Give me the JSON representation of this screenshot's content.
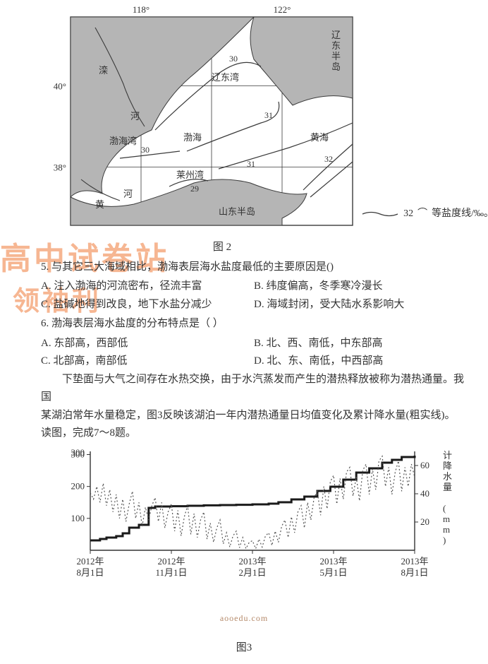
{
  "map": {
    "caption": "图 2",
    "lon_ticks": [
      "118°",
      "122°"
    ],
    "lat_ticks": [
      "40°",
      "38°"
    ],
    "labels": {
      "liaodong_peninsula": "辽东半岛",
      "liaodong_bay": "辽东湾",
      "bohai_bay": "渤海湾",
      "laizhou_bay": "莱州湾",
      "bohai": "渤海",
      "huanghai": "黄海",
      "shandong_peninsula": "山东半岛",
      "luan_river": "滦",
      "he_river": "河",
      "huang_river": "黄"
    },
    "isolines": [
      "30",
      "30",
      "31",
      "31",
      "32",
      "29"
    ],
    "legend_value": "32",
    "legend_text": "等盐度线/‰。",
    "land_fill": "#b5b5b5",
    "sea_fill": "#ffffff",
    "line_color": "#3a3a3a",
    "line_width": 1.2,
    "text_color": "#333333",
    "fontsize_label": 13
  },
  "watermark": {
    "line1": "高中试卷站",
    "line2": "领袖利",
    "color": "#f07c3a"
  },
  "q5": {
    "stem": "5. 与其它三大海域相比，渤海表层海水盐度最低的主要原因是()",
    "options": {
      "A": "A. 注入渤海的河流密布，径流丰富",
      "B": "B. 纬度偏高，冬季寒冷漫长",
      "C": "C. 盐碱地得到改良，地下水盐分减少",
      "D": "D. 海域封闭，受大陆水系影响大"
    }
  },
  "q6": {
    "stem": "6. 渤海表层海水盐度的分布特点是（  ）",
    "options": {
      "A": "A. 东部高，西部低",
      "B": "B. 北、西、南低，中东部高",
      "C": "C. 北部高，南部低",
      "D": "D. 北、东、南低，中西部高"
    }
  },
  "passage": {
    "p1": "下垫面与大气之间存在水热交换，由于水汽蒸发而产生的潜热释放被称为潜热通量。我国",
    "p2": "某湖泊常年水量稳定，图3反映该湖泊一年内潜热通量日均值变化及累计降水量(粗实线)。",
    "p3": "读图，完成7～8题。"
  },
  "chart": {
    "left_axis_label": "",
    "right_axis_label": "计降水量 (mm)",
    "left_ticks": [
      100,
      200,
      300
    ],
    "right_ticks": [
      20,
      40,
      60
    ],
    "left_ylim": [
      0,
      310
    ],
    "right_ylim": [
      0,
      70
    ],
    "x_labels": [
      "2012年\n8月1日",
      "2012年\n11月1日",
      "2013年\n2月1日",
      "2013年\n5月1日",
      "2013年\n8月1日"
    ],
    "x_positions": [
      0,
      0.25,
      0.5,
      0.75,
      1.0
    ],
    "colors": {
      "axis": "#333333",
      "heavy_line": "#1a1a1a",
      "dotted_line": "#555555",
      "background": "#ffffff"
    },
    "heavy_line_width": 3,
    "dotted_line_width": 1.2,
    "font_size": 13,
    "precip_points": [
      [
        0.0,
        7
      ],
      [
        0.03,
        8
      ],
      [
        0.05,
        9
      ],
      [
        0.08,
        10
      ],
      [
        0.1,
        12
      ],
      [
        0.12,
        16
      ],
      [
        0.15,
        18
      ],
      [
        0.18,
        30
      ],
      [
        0.2,
        31
      ],
      [
        0.22,
        31
      ],
      [
        0.25,
        31.2
      ],
      [
        0.3,
        31.5
      ],
      [
        0.35,
        31.8
      ],
      [
        0.4,
        32
      ],
      [
        0.45,
        32.2
      ],
      [
        0.5,
        32.5
      ],
      [
        0.55,
        33
      ],
      [
        0.58,
        34
      ],
      [
        0.62,
        36
      ],
      [
        0.66,
        38
      ],
      [
        0.7,
        42
      ],
      [
        0.74,
        45
      ],
      [
        0.78,
        50
      ],
      [
        0.82,
        55
      ],
      [
        0.86,
        58
      ],
      [
        0.9,
        62
      ],
      [
        0.93,
        64
      ],
      [
        0.96,
        66
      ],
      [
        1.0,
        67
      ]
    ],
    "latent_points": [
      [
        0.0,
        180
      ],
      [
        0.01,
        160
      ],
      [
        0.02,
        200
      ],
      [
        0.03,
        150
      ],
      [
        0.04,
        210
      ],
      [
        0.05,
        140
      ],
      [
        0.06,
        190
      ],
      [
        0.07,
        120
      ],
      [
        0.08,
        175
      ],
      [
        0.09,
        100
      ],
      [
        0.1,
        160
      ],
      [
        0.11,
        90
      ],
      [
        0.12,
        145
      ],
      [
        0.13,
        185
      ],
      [
        0.14,
        100
      ],
      [
        0.15,
        150
      ],
      [
        0.16,
        75
      ],
      [
        0.17,
        135
      ],
      [
        0.18,
        95
      ],
      [
        0.19,
        140
      ],
      [
        0.2,
        165
      ],
      [
        0.21,
        90
      ],
      [
        0.22,
        150
      ],
      [
        0.23,
        70
      ],
      [
        0.24,
        120
      ],
      [
        0.25,
        145
      ],
      [
        0.26,
        60
      ],
      [
        0.27,
        125
      ],
      [
        0.28,
        45
      ],
      [
        0.29,
        105
      ],
      [
        0.3,
        140
      ],
      [
        0.31,
        50
      ],
      [
        0.32,
        115
      ],
      [
        0.33,
        40
      ],
      [
        0.34,
        95
      ],
      [
        0.35,
        120
      ],
      [
        0.36,
        35
      ],
      [
        0.37,
        85
      ],
      [
        0.38,
        25
      ],
      [
        0.39,
        70
      ],
      [
        0.4,
        95
      ],
      [
        0.41,
        20
      ],
      [
        0.42,
        55
      ],
      [
        0.43,
        10
      ],
      [
        0.44,
        45
      ],
      [
        0.45,
        60
      ],
      [
        0.46,
        8
      ],
      [
        0.47,
        40
      ],
      [
        0.48,
        5
      ],
      [
        0.49,
        25
      ],
      [
        0.5,
        30
      ],
      [
        0.51,
        5
      ],
      [
        0.52,
        35
      ],
      [
        0.53,
        10
      ],
      [
        0.54,
        45
      ],
      [
        0.55,
        55
      ],
      [
        0.56,
        15
      ],
      [
        0.57,
        60
      ],
      [
        0.58,
        25
      ],
      [
        0.59,
        75
      ],
      [
        0.6,
        95
      ],
      [
        0.61,
        40
      ],
      [
        0.62,
        105
      ],
      [
        0.63,
        55
      ],
      [
        0.64,
        120
      ],
      [
        0.65,
        140
      ],
      [
        0.66,
        70
      ],
      [
        0.67,
        150
      ],
      [
        0.68,
        95
      ],
      [
        0.69,
        165
      ],
      [
        0.7,
        185
      ],
      [
        0.71,
        110
      ],
      [
        0.72,
        200
      ],
      [
        0.73,
        130
      ],
      [
        0.74,
        215
      ],
      [
        0.75,
        235
      ],
      [
        0.76,
        145
      ],
      [
        0.77,
        225
      ],
      [
        0.78,
        160
      ],
      [
        0.79,
        245
      ],
      [
        0.8,
        260
      ],
      [
        0.81,
        170
      ],
      [
        0.82,
        230
      ],
      [
        0.83,
        155
      ],
      [
        0.84,
        250
      ],
      [
        0.85,
        270
      ],
      [
        0.86,
        175
      ],
      [
        0.87,
        255
      ],
      [
        0.88,
        190
      ],
      [
        0.89,
        280
      ],
      [
        0.9,
        295
      ],
      [
        0.91,
        200
      ],
      [
        0.92,
        260
      ],
      [
        0.93,
        175
      ],
      [
        0.94,
        245
      ],
      [
        0.95,
        280
      ],
      [
        0.96,
        185
      ],
      [
        0.97,
        260
      ],
      [
        0.98,
        200
      ],
      [
        0.99,
        270
      ],
      [
        1.0,
        230
      ]
    ]
  },
  "footer_url": "aooedu.com",
  "fig3_caption": "图3"
}
